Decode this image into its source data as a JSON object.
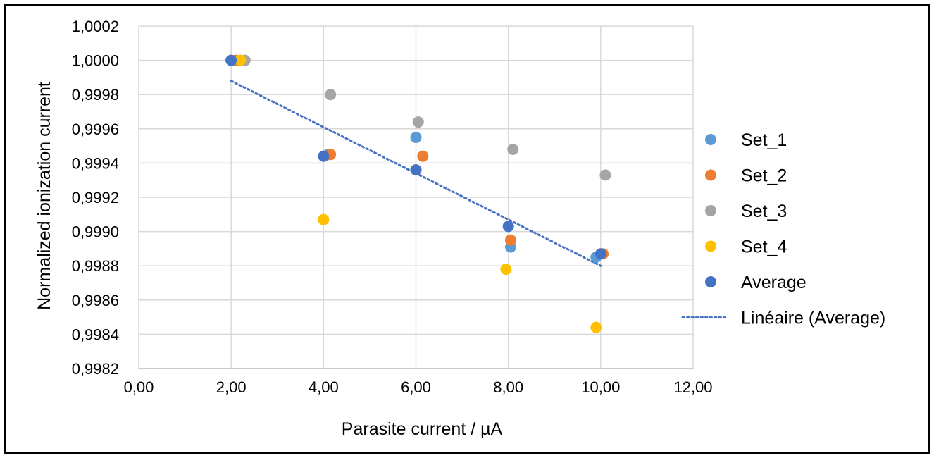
{
  "chart_data": {
    "type": "scatter",
    "xlabel": "Parasite current / µA",
    "ylabel": "Normalized ionization current",
    "xlim": [
      0,
      12
    ],
    "ylim": [
      0.9982,
      1.0002
    ],
    "x_ticks": [
      "0,00",
      "2,00",
      "4,00",
      "6,00",
      "8,00",
      "10,00",
      "12,00"
    ],
    "y_ticks": [
      "1,0002",
      "1,0000",
      "0,9998",
      "0,9996",
      "0,9994",
      "0,9992",
      "0,9990",
      "0,9988",
      "0,9986",
      "0,9984",
      "0,9982"
    ],
    "grid": true,
    "legend_position": "right",
    "series": [
      {
        "name": "Set_1",
        "color": "#5b9bd5",
        "points": [
          [
            2.0,
            1.0
          ],
          [
            4.1,
            0.99945
          ],
          [
            6.0,
            0.99955
          ],
          [
            8.05,
            0.99891
          ],
          [
            9.9,
            0.99885
          ]
        ]
      },
      {
        "name": "Set_2",
        "color": "#ed7d31",
        "points": [
          [
            2.1,
            1.0
          ],
          [
            4.15,
            0.99945
          ],
          [
            6.15,
            0.99944
          ],
          [
            8.05,
            0.99895
          ],
          [
            10.05,
            0.99887
          ]
        ]
      },
      {
        "name": "Set_3",
        "color": "#a5a5a5",
        "points": [
          [
            2.3,
            1.0
          ],
          [
            4.15,
            0.9998
          ],
          [
            6.05,
            0.99964
          ],
          [
            8.1,
            0.99948
          ],
          [
            10.1,
            0.99933
          ]
        ]
      },
      {
        "name": "Set_4",
        "color": "#ffc000",
        "points": [
          [
            2.2,
            1.0
          ],
          [
            4.0,
            0.99907
          ],
          [
            6.0,
            0.99936
          ],
          [
            7.95,
            0.99878
          ],
          [
            9.9,
            0.99844
          ]
        ]
      },
      {
        "name": "Average",
        "color": "#4472c4",
        "points": [
          [
            2.0,
            1.0
          ],
          [
            4.0,
            0.99944
          ],
          [
            6.0,
            0.99936
          ],
          [
            8.0,
            0.99903
          ],
          [
            10.0,
            0.99887
          ]
        ]
      }
    ],
    "trendline": {
      "name": "Linéaire (Average)",
      "of": "Average",
      "color": "#4472c4",
      "style": "dotted",
      "x": [
        2.0,
        10.0
      ],
      "y": [
        0.99988,
        0.9988
      ]
    }
  }
}
